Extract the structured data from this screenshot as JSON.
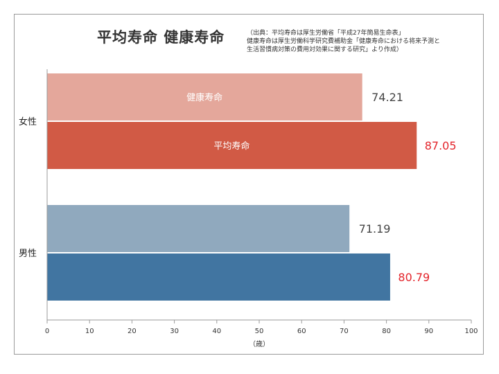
{
  "chart_data": {
    "type": "bar",
    "orientation": "horizontal",
    "title": "平均寿命 健康寿命",
    "source_note": "（出典：平均寿命は厚生労働省「平成27年簡易生命表」\n健康寿命は厚生労働科学研究費補助金「健康寿命における将来予測と\n生活習慣病対策の費用対効果に関する研究」より作成）",
    "xlabel": "（歳）",
    "xlim": [
      0,
      100
    ],
    "xticks": [
      0,
      10,
      20,
      30,
      40,
      50,
      60,
      70,
      80,
      90,
      100
    ],
    "categories": [
      "女性",
      "男性"
    ],
    "series": [
      {
        "name": "健康寿命",
        "values": [
          74.21,
          71.19
        ]
      },
      {
        "name": "平均寿命",
        "values": [
          87.05,
          80.79
        ]
      }
    ],
    "value_labels": [
      [
        "74.21",
        "71.19"
      ],
      [
        "87.05",
        "80.79"
      ]
    ],
    "colors": {
      "female": [
        "#e4a79b",
        "#d15a45"
      ],
      "male": [
        "#90a9be",
        "#4175a1"
      ],
      "highlight_label": "#e3232a",
      "normal_label": "#444444"
    },
    "grid": false
  }
}
